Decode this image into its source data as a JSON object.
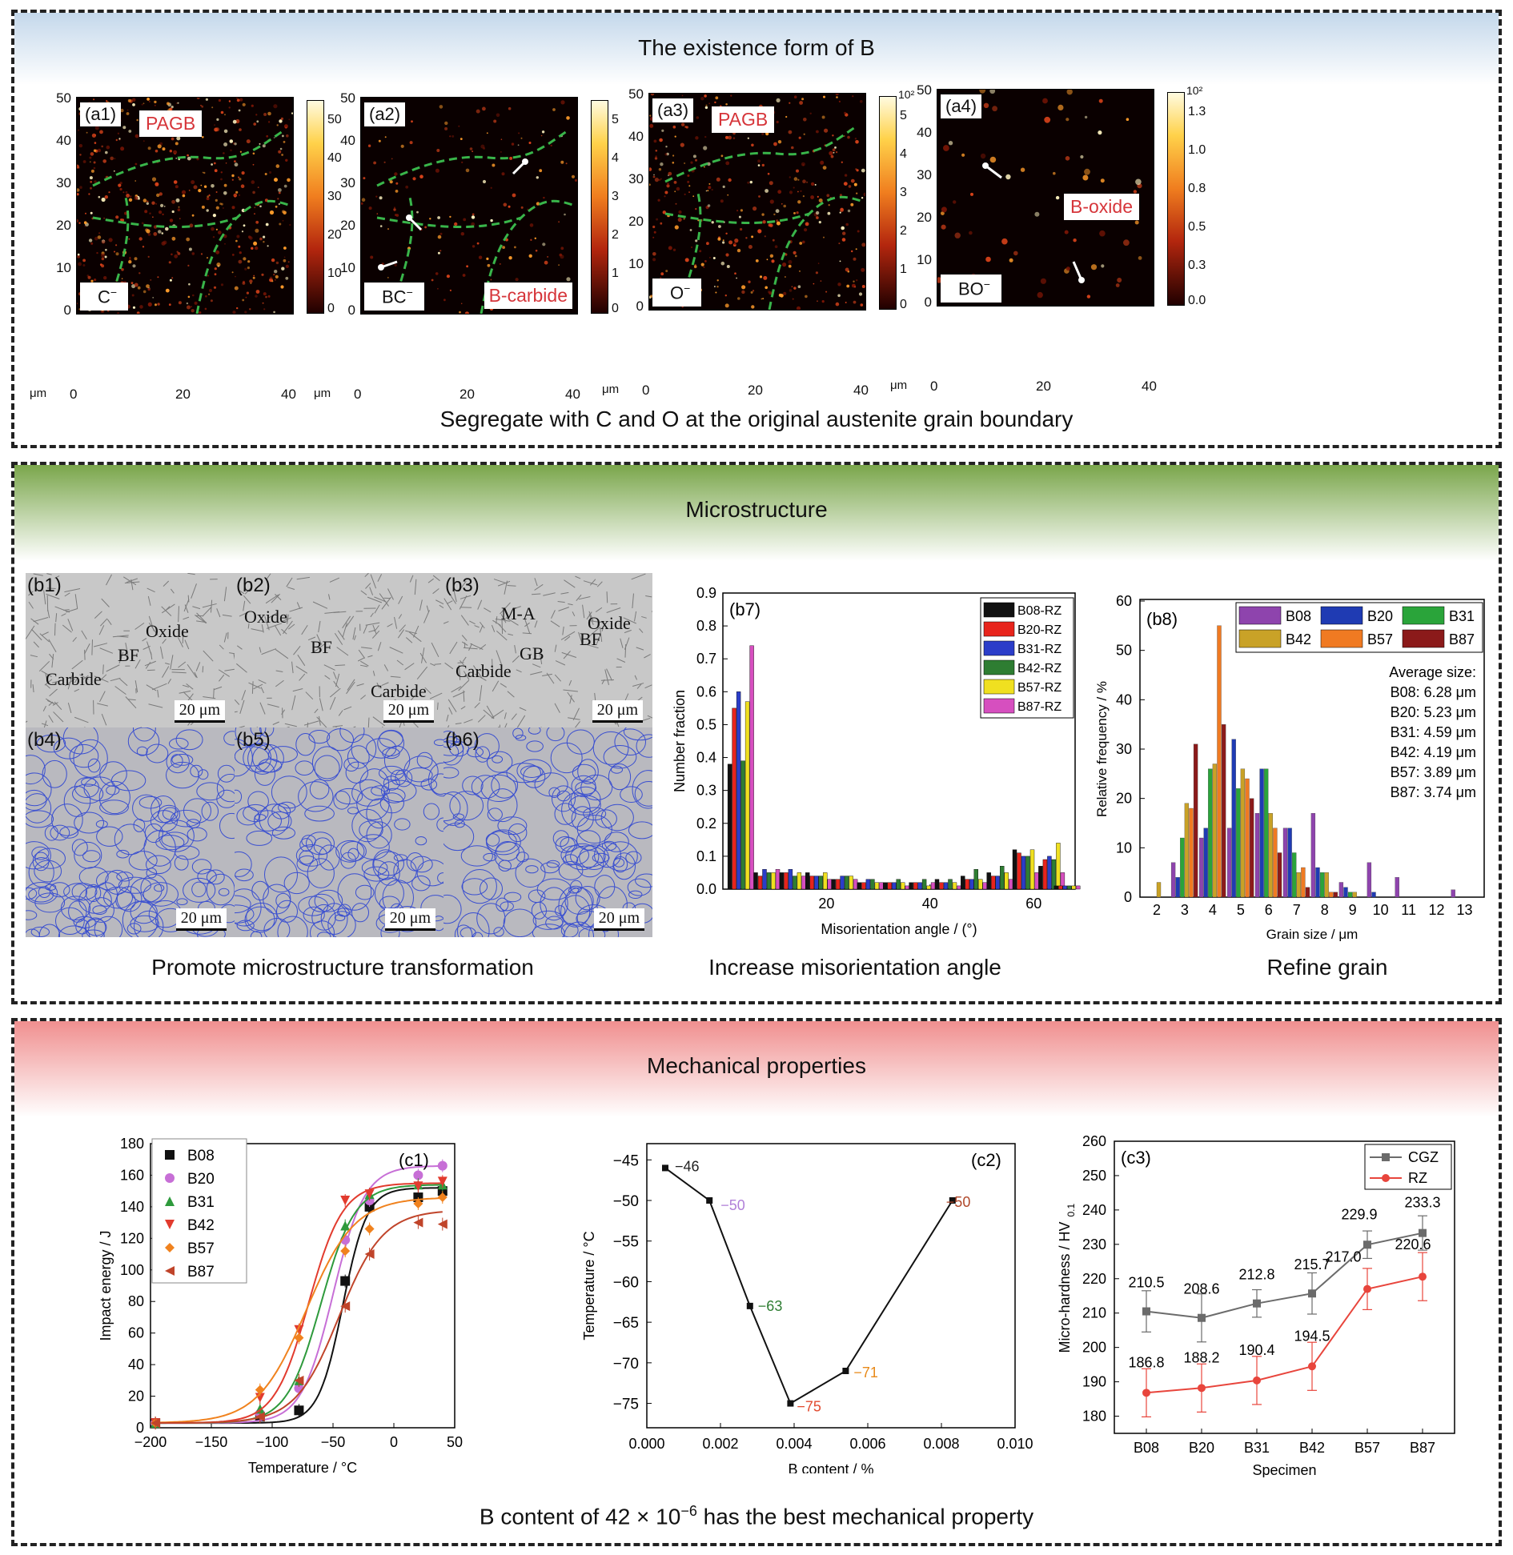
{
  "sections": {
    "a": {
      "title": "The existence form of B",
      "caption": "Segregate with C and O at the original austenite grain boundary"
    },
    "b": {
      "title": "Microstructure",
      "captions": [
        "Promote microstructure transformation",
        "Increase misorientation angle",
        "Refine grain"
      ]
    },
    "c": {
      "title": "Mechanical properties",
      "caption_pre": "B content of 42 × 10",
      "caption_exp": "−6",
      "caption_post": " has the best mechanical property"
    }
  },
  "colors": {
    "header_a": "#c9daea",
    "header_b": "#7aa64b",
    "header_c": "#f08f8f",
    "label_red": "#d6353a",
    "grain_line": "#3a4fd0",
    "boundary": "#39b54a"
  },
  "maps": [
    {
      "id": "a1",
      "panel_label": "(a1)",
      "top_label": "PAGB",
      "ion": "C",
      "ion_sup": "−",
      "bottom_right": "",
      "yticks": [
        "50",
        "40",
        "30",
        "20",
        "10",
        "0"
      ],
      "xticks": [
        "0",
        "20",
        "40"
      ],
      "unit": "μm",
      "cb_ticks": [
        "50",
        "40",
        "30",
        "20",
        "10",
        "0"
      ],
      "cb_top": "",
      "icons": "arrow-icon"
    },
    {
      "id": "a2",
      "panel_label": "(a2)",
      "top_label": "",
      "ion": "BC",
      "ion_sup": "−",
      "bottom_right": "B-carbide",
      "yticks": [
        "50",
        "40",
        "30",
        "20",
        "10",
        "0"
      ],
      "xticks": [
        "0",
        "20",
        "40"
      ],
      "unit": "μm",
      "cb_ticks": [
        "5",
        "4",
        "3",
        "2",
        "1",
        "0"
      ],
      "cb_top": ""
    },
    {
      "id": "a3",
      "panel_label": "(a3)",
      "top_label": "PAGB",
      "ion": "O",
      "ion_sup": "−",
      "bottom_right": "",
      "yticks": [
        "50",
        "40",
        "30",
        "20",
        "10",
        "0"
      ],
      "xticks": [
        "0",
        "20",
        "40"
      ],
      "unit": "μm",
      "cb_ticks": [
        "5",
        "4",
        "3",
        "2",
        "1",
        "0"
      ],
      "cb_top": "10²"
    },
    {
      "id": "a4",
      "panel_label": "(a4)",
      "top_label": "B-oxide",
      "ion": "BO",
      "ion_sup": "−",
      "bottom_right": "",
      "yticks": [
        "50",
        "40",
        "30",
        "20",
        "10",
        "0"
      ],
      "xticks": [
        "0",
        "20",
        "40"
      ],
      "unit": "μm",
      "cb_ticks": [
        "1.3",
        "1.0",
        "0.8",
        "0.5",
        "0.3",
        "0.0"
      ],
      "cb_top": "10²"
    }
  ],
  "micrographs": [
    {
      "label": "(b1)",
      "scale": "20 μm",
      "notes": [
        "Oxide",
        "BF",
        "Carbide"
      ]
    },
    {
      "label": "(b2)",
      "scale": "20 μm",
      "notes": [
        "Oxide",
        "BF",
        "Carbide"
      ]
    },
    {
      "label": "(b3)",
      "scale": "20 μm",
      "notes": [
        "M-A",
        "Oxide",
        "BF",
        "GB",
        "Carbide"
      ]
    },
    {
      "label": "(b4)",
      "scale": "20 μm",
      "notes": []
    },
    {
      "label": "(b5)",
      "scale": "20 μm",
      "notes": []
    },
    {
      "label": "(b6)",
      "scale": "20 μm",
      "notes": []
    }
  ],
  "chart_data": [
    {
      "id": "b7",
      "type": "bar",
      "panel_label": "(b7)",
      "xlabel": "Misorientation angle / (°)",
      "ylabel": "Number fraction",
      "ylim": [
        0,
        0.9
      ],
      "yticks": [
        "0.0",
        "0.1",
        "0.2",
        "0.3",
        "0.4",
        "0.5",
        "0.6",
        "0.7",
        "0.8",
        "0.9"
      ],
      "xlim": [
        0,
        68
      ],
      "xticks": [
        "20",
        "40",
        "60"
      ],
      "bin_centers": [
        3.5,
        8.5,
        13.5,
        18.5,
        23.5,
        28.5,
        33.5,
        38.5,
        43.5,
        48.5,
        53.5,
        58.5,
        63.5,
        66.5
      ],
      "series": [
        {
          "name": "B08-RZ",
          "color": "#111111",
          "values": [
            0.38,
            0.05,
            0.05,
            0.05,
            0.03,
            0.02,
            0.02,
            0.02,
            0.03,
            0.04,
            0.05,
            0.12,
            0.07,
            0.01
          ]
        },
        {
          "name": "B20-RZ",
          "color": "#e8241c",
          "values": [
            0.55,
            0.04,
            0.05,
            0.04,
            0.03,
            0.02,
            0.02,
            0.02,
            0.02,
            0.03,
            0.04,
            0.11,
            0.09,
            0.01
          ]
        },
        {
          "name": "B31-RZ",
          "color": "#2b3dc9",
          "values": [
            0.6,
            0.06,
            0.06,
            0.04,
            0.04,
            0.03,
            0.02,
            0.02,
            0.02,
            0.03,
            0.04,
            0.1,
            0.1,
            0.01
          ]
        },
        {
          "name": "B42-RZ",
          "color": "#2e7d32",
          "values": [
            0.39,
            0.05,
            0.04,
            0.04,
            0.04,
            0.03,
            0.03,
            0.03,
            0.03,
            0.06,
            0.07,
            0.1,
            0.09,
            0.01
          ]
        },
        {
          "name": "B57-RZ",
          "color": "#f0e020",
          "values": [
            0.57,
            0.05,
            0.05,
            0.05,
            0.04,
            0.02,
            0.02,
            0.01,
            0.02,
            0.03,
            0.05,
            0.12,
            0.14,
            0.01
          ]
        },
        {
          "name": "B87-RZ",
          "color": "#d64fbf",
          "values": [
            0.74,
            0.06,
            0.04,
            0.03,
            0.03,
            0.02,
            0.01,
            0.02,
            0.01,
            0.02,
            0.03,
            0.05,
            0.05,
            0.01
          ]
        }
      ]
    },
    {
      "id": "b8",
      "type": "bar",
      "panel_label": "(b8)",
      "xlabel": "Grain size / μm",
      "ylabel": "Relative frequency / %",
      "ylim": [
        0,
        60
      ],
      "yticks": [
        "0",
        "10",
        "20",
        "30",
        "40",
        "50",
        "60"
      ],
      "categories": [
        "2",
        "3",
        "4",
        "5",
        "6",
        "7",
        "8",
        "9",
        "10",
        "11",
        "12",
        "13"
      ],
      "series": [
        {
          "name": "B08",
          "color": "#8e44ad",
          "values": [
            0,
            7,
            12,
            14,
            17,
            14,
            17,
            3,
            7,
            4,
            0,
            1.5
          ]
        },
        {
          "name": "B20",
          "color": "#1f3bb3",
          "values": [
            0,
            4,
            14,
            32,
            26,
            14,
            6,
            2,
            1,
            0,
            0,
            0
          ]
        },
        {
          "name": "B31",
          "color": "#2aa43a",
          "values": [
            0,
            12,
            26,
            22,
            26,
            9,
            5,
            1,
            0,
            0,
            0,
            0
          ]
        },
        {
          "name": "B42",
          "color": "#c9a227",
          "values": [
            3,
            19,
            27,
            26,
            17,
            5,
            5,
            1,
            0,
            0,
            0,
            0
          ]
        },
        {
          "name": "B57",
          "color": "#f07a22",
          "values": [
            0,
            18,
            55,
            24,
            14,
            6,
            1,
            0,
            0,
            0,
            0,
            0
          ]
        },
        {
          "name": "B87",
          "color": "#8b1a1a",
          "values": [
            0,
            31,
            35,
            20,
            9,
            2,
            1,
            0,
            0,
            0,
            0,
            0
          ]
        }
      ],
      "avg_title": "Average size:",
      "averages": [
        "B08: 6.28 μm",
        "B20: 5.23 μm",
        "B31: 4.59 μm",
        "B42: 4.19 μm",
        "B57: 3.89 μm",
        "B87: 3.74 μm"
      ]
    },
    {
      "id": "c1",
      "type": "scatter",
      "panel_label": "(c1)",
      "xlabel": "Temperature / °C",
      "ylabel": "Impact energy / J",
      "xlim": [
        -200,
        50
      ],
      "ylim": [
        0,
        180
      ],
      "xticks": [
        "−200",
        "−150",
        "−100",
        "−50",
        "0",
        "50"
      ],
      "yticks": [
        "0",
        "20",
        "40",
        "60",
        "80",
        "100",
        "120",
        "140",
        "160",
        "180"
      ],
      "series": [
        {
          "name": "B08",
          "color": "#111111",
          "marker": "square",
          "x": [
            -196,
            -110,
            -78,
            -40,
            -20,
            20,
            40
          ],
          "y": [
            3,
            7,
            11,
            93,
            140,
            146,
            150
          ],
          "fit": {
            "A": 3,
            "B": 152,
            "T0": -42,
            "C": 10
          }
        },
        {
          "name": "B20",
          "color": "#c76fd6",
          "marker": "circle",
          "x": [
            -196,
            -110,
            -78,
            -40,
            -20,
            20,
            40
          ],
          "y": [
            3,
            9,
            25,
            119,
            144,
            160,
            166
          ],
          "fit": {
            "A": 3,
            "B": 166,
            "T0": -50,
            "C": 13
          }
        },
        {
          "name": "B31",
          "color": "#2e9a3c",
          "marker": "triangle",
          "x": [
            -196,
            -110,
            -78,
            -40,
            -20,
            20,
            40
          ],
          "y": [
            3,
            12,
            30,
            128,
            148,
            154,
            154
          ],
          "fit": {
            "A": 3,
            "B": 154,
            "T0": -60,
            "C": 14
          }
        },
        {
          "name": "B42",
          "color": "#e23b2e",
          "marker": "triangle-down",
          "x": [
            -196,
            -110,
            -78,
            -40,
            -20,
            20,
            40
          ],
          "y": [
            3,
            19,
            62,
            144,
            148,
            153,
            156
          ],
          "fit": {
            "A": 3,
            "B": 155,
            "T0": -70,
            "C": 14
          }
        },
        {
          "name": "B57",
          "color": "#f0821e",
          "marker": "diamond",
          "x": [
            -196,
            -110,
            -78,
            -40,
            -20,
            20,
            40
          ],
          "y": [
            3,
            24,
            57,
            112,
            126,
            142,
            146
          ],
          "fit": {
            "A": 3,
            "B": 146,
            "T0": -72,
            "C": 20
          }
        },
        {
          "name": "B87",
          "color": "#c0442a",
          "marker": "triangle-left",
          "x": [
            -196,
            -110,
            -78,
            -40,
            -20,
            20,
            40
          ],
          "y": [
            3,
            7,
            30,
            77,
            110,
            130,
            129
          ],
          "fit": {
            "A": 3,
            "B": 138,
            "T0": -45,
            "C": 18
          }
        }
      ]
    },
    {
      "id": "c2",
      "type": "line",
      "panel_label": "(c2)",
      "xlabel": "B content / %",
      "ylabel": "Temperature / °C",
      "xlim": [
        0,
        0.01
      ],
      "ylim": [
        -78,
        -43
      ],
      "xticks": [
        "0.000",
        "0.002",
        "0.004",
        "0.006",
        "0.008",
        "0.010"
      ],
      "yticks": [
        "−45",
        "−50",
        "−55",
        "−60",
        "−65",
        "−70",
        "−75"
      ],
      "x": [
        0.0005,
        0.0017,
        0.0028,
        0.0039,
        0.0054,
        0.0083
      ],
      "y": [
        -46,
        -50,
        -63,
        -75,
        -71,
        -50
      ],
      "point_labels": [
        "−46",
        "−50",
        "−63",
        "−75",
        "−71",
        "−50"
      ],
      "label_colors": [
        "#222222",
        "#b07fd8",
        "#2e7d32",
        "#e24b30",
        "#e88a1a",
        "#b0482a"
      ]
    },
    {
      "id": "c3",
      "type": "line",
      "panel_label": "(c3)",
      "xlabel": "Specimen",
      "ylabel_main": "Micro-hardness / HV",
      "ylabel_sub": "0.1",
      "categories": [
        "B08",
        "B20",
        "B31",
        "B42",
        "B57",
        "B87"
      ],
      "ylim": [
        175,
        260
      ],
      "yticks": [
        "180",
        "190",
        "200",
        "210",
        "220",
        "230",
        "240",
        "250",
        "260"
      ],
      "series": [
        {
          "name": "CGZ",
          "color": "#6b6b6b",
          "marker": "square",
          "values": [
            210.5,
            208.6,
            212.8,
            215.7,
            229.9,
            233.3
          ],
          "labels": [
            "210.5",
            "208.6",
            "212.8",
            "215.7",
            "229.9",
            "233.3"
          ],
          "err": [
            6,
            7,
            4,
            6,
            4,
            5
          ]
        },
        {
          "name": "RZ",
          "color": "#e8453c",
          "marker": "circle",
          "values": [
            186.8,
            188.2,
            190.4,
            194.5,
            217.0,
            220.6
          ],
          "labels": [
            "186.8",
            "188.2",
            "190.4",
            "194.5",
            "217.0",
            "220.6"
          ],
          "err": [
            7,
            7,
            7,
            7,
            6,
            7
          ]
        }
      ]
    }
  ]
}
